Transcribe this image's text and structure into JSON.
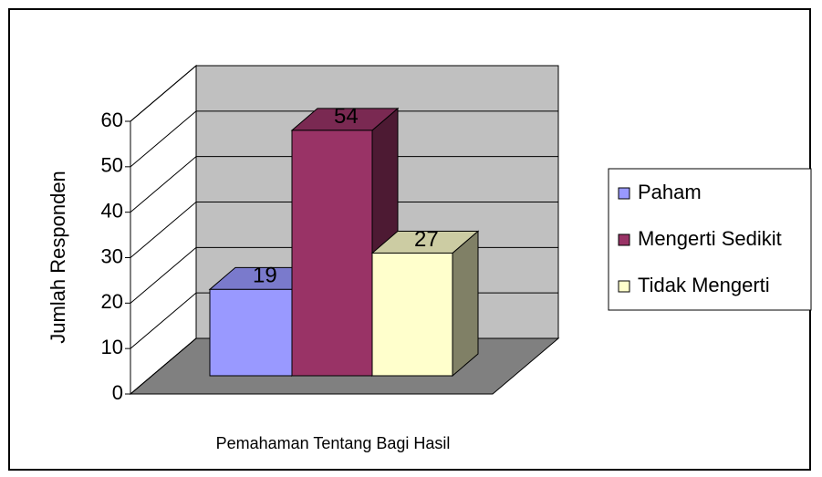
{
  "chart_data": {
    "type": "bar3d",
    "x_label": "Pemahaman Tentang Bagi Hasil",
    "y_label": "Jumlah Responden",
    "series": [
      {
        "name": "Paham",
        "color": "#9999ff",
        "values": [
          19
        ]
      },
      {
        "name": "Mengerti Sedikit",
        "color": "#993366",
        "values": [
          54
        ]
      },
      {
        "name": "Tidak Mengerti",
        "color": "#ffffcc",
        "values": [
          27
        ]
      }
    ],
    "ylim": [
      0,
      60
    ],
    "yticks": [
      0,
      10,
      20,
      30,
      40,
      50,
      60
    ],
    "grid": true,
    "legend": "right",
    "data_labels": true
  }
}
